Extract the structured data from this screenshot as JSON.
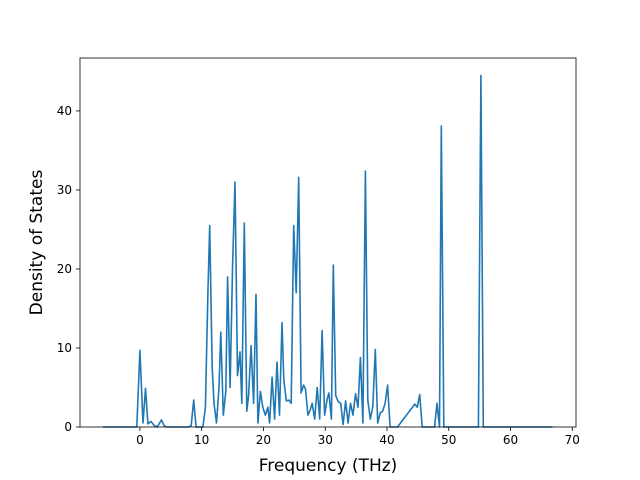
{
  "chart_data": {
    "type": "line",
    "title": "",
    "xlabel": "Frequency (THz)",
    "ylabel": "Density of States",
    "xlim": [
      -9.7,
      70.6
    ],
    "ylim": [
      0,
      46.7
    ],
    "grid": false,
    "line_color": "#1f77b4",
    "x_ticks": [
      0,
      10,
      20,
      30,
      40,
      50,
      60,
      70
    ],
    "x_tick_labels": [
      "0",
      "10",
      "20",
      "30",
      "40",
      "50",
      "60",
      "70"
    ],
    "y_ticks": [
      0,
      10,
      20,
      30,
      40
    ],
    "y_tick_labels": [
      "0",
      "10",
      "20",
      "30",
      "40"
    ],
    "series": [
      {
        "name": "",
        "x": [
          -6.0,
          -0.5,
          0.0,
          0.5,
          0.9,
          1.3,
          1.8,
          2.3,
          2.8,
          3.1,
          3.5,
          3.9,
          4.3,
          7.9,
          8.3,
          8.7,
          9.1,
          10.2,
          10.6,
          11.0,
          11.3,
          11.7,
          12.0,
          12.4,
          12.8,
          13.1,
          13.5,
          13.9,
          14.2,
          14.6,
          15.0,
          15.4,
          15.8,
          16.2,
          16.5,
          16.9,
          17.3,
          17.6,
          18.0,
          18.4,
          18.8,
          19.1,
          19.5,
          19.9,
          20.3,
          20.7,
          21.0,
          21.4,
          21.8,
          22.2,
          22.6,
          23.0,
          23.3,
          23.7,
          24.1,
          24.5,
          24.9,
          25.3,
          25.7,
          26.1,
          26.5,
          26.8,
          27.2,
          27.5,
          27.9,
          28.3,
          28.7,
          29.1,
          29.5,
          29.9,
          30.3,
          30.6,
          31.0,
          31.3,
          31.7,
          32.1,
          32.5,
          32.9,
          33.3,
          33.7,
          34.1,
          34.5,
          34.9,
          35.3,
          35.7,
          36.1,
          36.5,
          36.9,
          37.3,
          37.7,
          38.1,
          38.5,
          38.9,
          39.3,
          39.7,
          40.1,
          40.5,
          40.9,
          41.3,
          41.7,
          44.5,
          44.9,
          45.3,
          45.7,
          46.1,
          47.7,
          48.1,
          48.5,
          48.8,
          49.2,
          49.6,
          54.8,
          55.2,
          55.6,
          66.8
        ],
        "values": [
          0,
          0,
          9.7,
          0.5,
          4.9,
          0.4,
          0.7,
          0.2,
          0,
          0.4,
          0.9,
          0.2,
          0,
          0,
          0.2,
          3.4,
          0,
          0,
          2.5,
          17.0,
          25.5,
          7.5,
          3.0,
          0.5,
          5.0,
          12.0,
          1.5,
          4.5,
          19.0,
          5.0,
          20.5,
          31.0,
          6.5,
          9.5,
          3.0,
          25.8,
          2.0,
          4.0,
          10.3,
          3.0,
          16.8,
          0.5,
          4.5,
          2.5,
          1.5,
          2.5,
          0.5,
          6.3,
          1.0,
          8.2,
          1.5,
          13.2,
          6.0,
          3.3,
          3.4,
          3.0,
          25.5,
          17.0,
          31.6,
          4.3,
          5.3,
          4.8,
          1.5,
          2.0,
          3.0,
          1.0,
          5.0,
          1.0,
          12.2,
          1.5,
          3.5,
          4.3,
          1.0,
          20.5,
          4.0,
          3.2,
          3.0,
          0.3,
          3.3,
          0.5,
          3.0,
          1.5,
          4.2,
          2.5,
          8.8,
          0.5,
          32.4,
          3.4,
          1.0,
          2.6,
          9.8,
          0.5,
          1.8,
          2.0,
          3.0,
          5.3,
          0,
          0,
          0,
          0,
          2.9,
          2.5,
          4.1,
          0,
          0,
          0,
          3.0,
          0,
          38.1,
          0,
          0,
          0,
          44.5,
          0,
          0
        ]
      }
    ]
  }
}
